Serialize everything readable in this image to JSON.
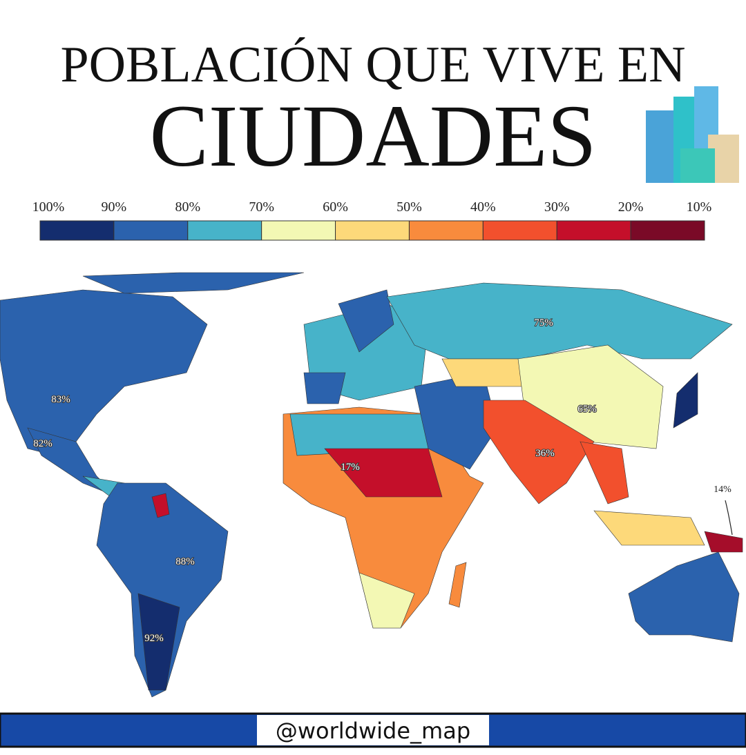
{
  "title": {
    "line1": "POBLACIÓN QUE VIVE EN",
    "line2": "CIUDADES"
  },
  "legend": {
    "labels": [
      "100%",
      "90%",
      "80%",
      "70%",
      "60%",
      "50%",
      "40%",
      "30%",
      "20%",
      "10%"
    ],
    "colors": [
      "#142d6e",
      "#2b62ad",
      "#47b3c9",
      "#f3f8b4",
      "#fdd97a",
      "#f88b3d",
      "#f2502d",
      "#c40f2a",
      "#7a0a27"
    ]
  },
  "map_labels": [
    "75%",
    "65%",
    "36%",
    "17%",
    "83%",
    "82%",
    "88%",
    "92%",
    "14%"
  ],
  "footer": {
    "handle": "@worldwide_map"
  }
}
